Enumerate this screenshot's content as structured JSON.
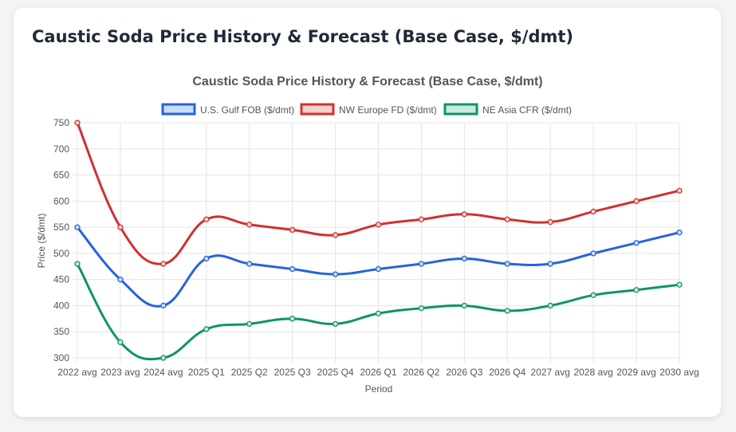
{
  "header": {
    "title": "Caustic Soda Price History & Forecast (Base Case, $/dmt)"
  },
  "chart_data": {
    "type": "line",
    "title": "Caustic Soda Price History & Forecast (Base Case, $/dmt)",
    "xlabel": "Period",
    "ylabel": "Price ($/dmt)",
    "ylim": [
      300,
      750
    ],
    "yticks": [
      300,
      350,
      400,
      450,
      500,
      550,
      600,
      650,
      700,
      750
    ],
    "grid": true,
    "legend_position": "top",
    "categories": [
      "2022 avg",
      "2023 avg",
      "2024 avg",
      "2025 Q1",
      "2025 Q2",
      "2025 Q3",
      "2025 Q4",
      "2026 Q1",
      "2026 Q2",
      "2026 Q3",
      "2026 Q4",
      "2027 avg",
      "2028 avg",
      "2029 avg",
      "2030 avg"
    ],
    "series": [
      {
        "name": "U.S. Gulf FOB ($/dmt)",
        "color": "#2563d9",
        "fill": "#c9dcf7",
        "values": [
          550,
          450,
          400,
          490,
          480,
          470,
          460,
          470,
          480,
          490,
          480,
          480,
          500,
          520,
          540
        ]
      },
      {
        "name": "NW Europe FD ($/dmt)",
        "color": "#d03030",
        "fill": "#f7d0d0",
        "values": [
          750,
          550,
          480,
          565,
          555,
          545,
          535,
          555,
          565,
          575,
          565,
          560,
          580,
          600,
          620
        ]
      },
      {
        "name": "NE Asia CFR ($/dmt)",
        "color": "#0f9466",
        "fill": "#c8ebdc",
        "values": [
          480,
          330,
          300,
          355,
          365,
          375,
          365,
          385,
          395,
          400,
          390,
          400,
          420,
          430,
          440
        ]
      }
    ]
  }
}
